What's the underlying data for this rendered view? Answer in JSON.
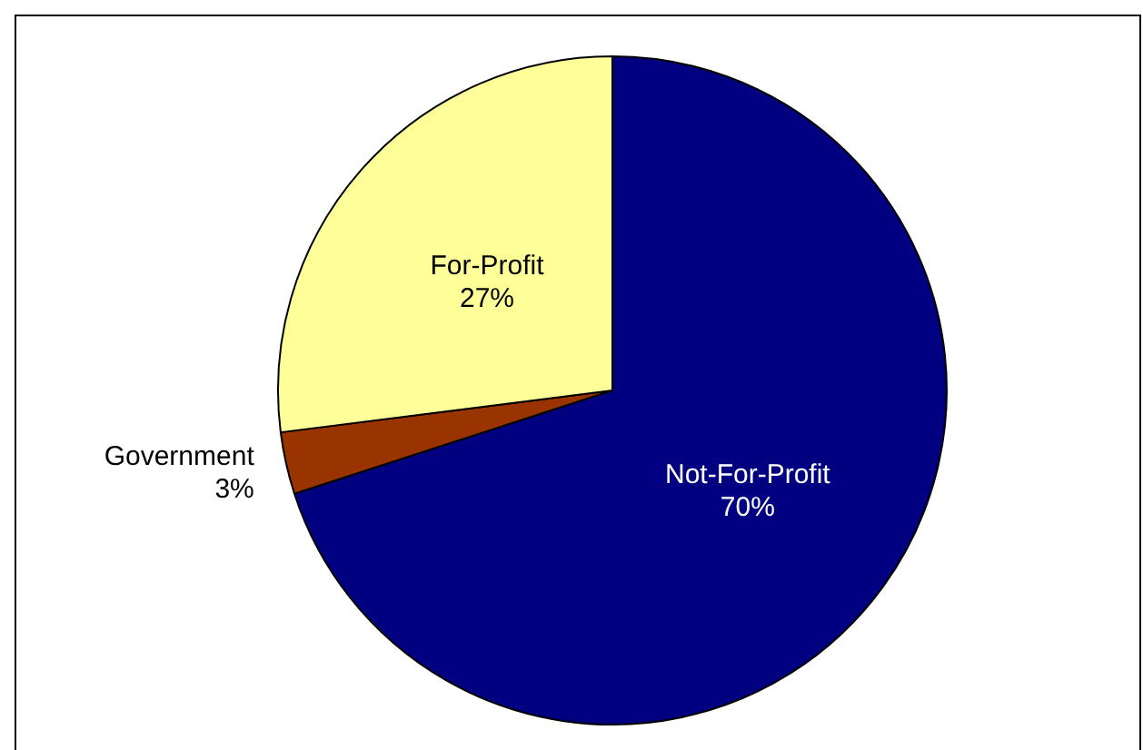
{
  "chart_data": {
    "type": "pie",
    "categories": [
      "Not-For-Profit",
      "Government",
      "For-Profit"
    ],
    "values": [
      70,
      3,
      27
    ],
    "colors": [
      "#000080",
      "#993300",
      "#ffff99"
    ],
    "value_labels": [
      "70%",
      "3%",
      "27%"
    ]
  }
}
